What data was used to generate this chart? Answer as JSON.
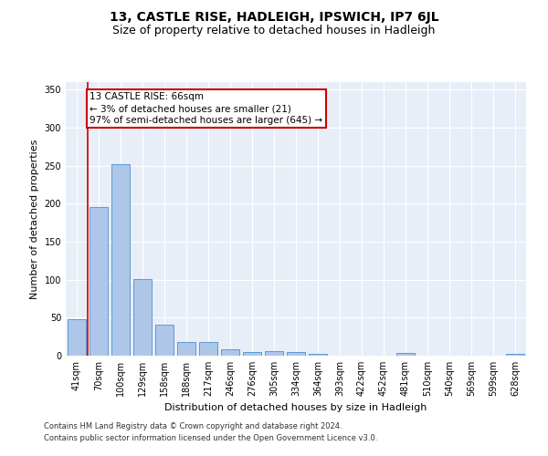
{
  "title": "13, CASTLE RISE, HADLEIGH, IPSWICH, IP7 6JL",
  "subtitle": "Size of property relative to detached houses in Hadleigh",
  "xlabel": "Distribution of detached houses by size in Hadleigh",
  "ylabel": "Number of detached properties",
  "categories": [
    "41sqm",
    "70sqm",
    "100sqm",
    "129sqm",
    "158sqm",
    "188sqm",
    "217sqm",
    "246sqm",
    "276sqm",
    "305sqm",
    "334sqm",
    "364sqm",
    "393sqm",
    "422sqm",
    "452sqm",
    "481sqm",
    "510sqm",
    "540sqm",
    "569sqm",
    "599sqm",
    "628sqm"
  ],
  "values": [
    48,
    196,
    252,
    101,
    41,
    18,
    18,
    9,
    5,
    6,
    5,
    3,
    0,
    0,
    0,
    4,
    0,
    0,
    0,
    0,
    3
  ],
  "bar_color": "#aec6e8",
  "bar_edge_color": "#5b9bd5",
  "property_line_x": 0.5,
  "property_line_color": "#cc0000",
  "annotation_box_text": "13 CASTLE RISE: 66sqm\n← 3% of detached houses are smaller (21)\n97% of semi-detached houses are larger (645) →",
  "annotation_box_color": "#cc0000",
  "annotation_box_bg": "#ffffff",
  "ylim": [
    0,
    360
  ],
  "yticks": [
    0,
    50,
    100,
    150,
    200,
    250,
    300,
    350
  ],
  "background_color": "#e8eef7",
  "footer_line1": "Contains HM Land Registry data © Crown copyright and database right 2024.",
  "footer_line2": "Contains public sector information licensed under the Open Government Licence v3.0.",
  "title_fontsize": 10,
  "subtitle_fontsize": 9,
  "axis_label_fontsize": 8,
  "tick_fontsize": 7,
  "annotation_fontsize": 7.5
}
